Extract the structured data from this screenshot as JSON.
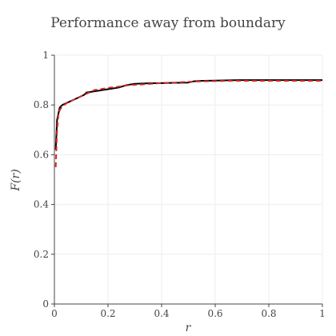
{
  "chart_data": {
    "type": "line",
    "title": "Performance away from boundary",
    "xlabel": "r",
    "ylabel": "F(r)",
    "xlim": [
      0,
      1
    ],
    "ylim": [
      0,
      1
    ],
    "x_ticks": [
      0,
      0.2,
      0.4,
      0.6,
      0.8,
      1
    ],
    "x_tick_labels": [
      "0",
      "0.2",
      "0.4",
      "0.6",
      "0.8",
      "1"
    ],
    "y_ticks": [
      0,
      0.2,
      0.4,
      0.6,
      0.8,
      1
    ],
    "y_tick_labels": [
      "0",
      "0.2",
      "0.4",
      "0.6",
      "0.8",
      "1"
    ],
    "grid": true,
    "series": [
      {
        "color": "#000000",
        "dash": "solid",
        "x": [
          0.005,
          0.01,
          0.02,
          0.03,
          0.05,
          0.07,
          0.09,
          0.11,
          0.12,
          0.15,
          0.18,
          0.21,
          0.24,
          0.27,
          0.3,
          0.35,
          0.4,
          0.45,
          0.5,
          0.52,
          0.55,
          0.6,
          0.65,
          0.69,
          0.75,
          0.8,
          0.85,
          0.9,
          0.95,
          1.0
        ],
        "y": [
          0.62,
          0.74,
          0.79,
          0.8,
          0.81,
          0.82,
          0.83,
          0.84,
          0.85,
          0.855,
          0.86,
          0.865,
          0.87,
          0.88,
          0.885,
          0.887,
          0.888,
          0.889,
          0.89,
          0.895,
          0.897,
          0.898,
          0.899,
          0.9,
          0.9,
          0.9,
          0.9,
          0.9,
          0.9,
          0.9
        ]
      },
      {
        "color": "#d62728",
        "dash": "dashed",
        "x": [
          0.005,
          0.01,
          0.015,
          0.02,
          0.03,
          0.05,
          0.07,
          0.09,
          0.12,
          0.15,
          0.18,
          0.21,
          0.25,
          0.28,
          0.32,
          0.36,
          0.4,
          0.45,
          0.5,
          0.55,
          0.6,
          0.65,
          0.7,
          0.75,
          0.8,
          0.85,
          0.9,
          0.95,
          1.0
        ],
        "y": [
          0.55,
          0.7,
          0.76,
          0.78,
          0.795,
          0.81,
          0.82,
          0.83,
          0.845,
          0.86,
          0.865,
          0.87,
          0.875,
          0.88,
          0.882,
          0.885,
          0.888,
          0.89,
          0.893,
          0.895,
          0.896,
          0.897,
          0.897,
          0.897,
          0.897,
          0.897,
          0.897,
          0.897,
          0.897
        ]
      }
    ]
  }
}
